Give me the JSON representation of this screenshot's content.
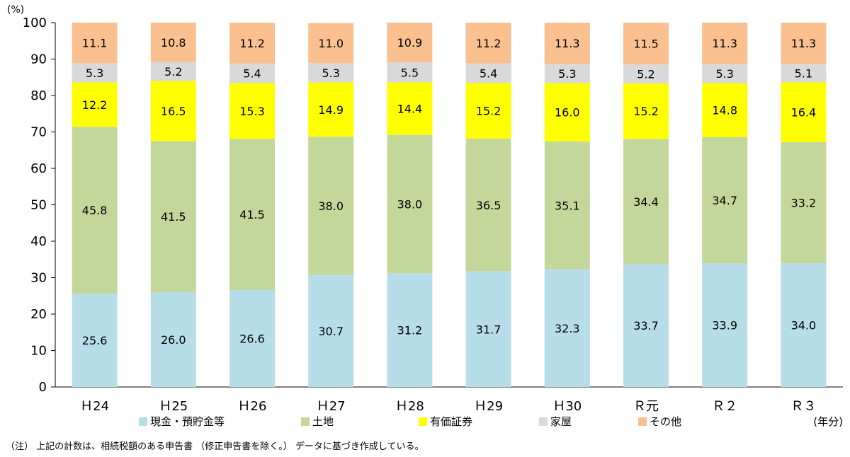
{
  "chart_data": {
    "type": "bar",
    "stacked": true,
    "percent_stacked": true,
    "title": "",
    "xlabel": "",
    "ylabel": "",
    "y_unit_label": "(%)",
    "x_unit_label": "(年分)",
    "ylim": [
      0,
      100
    ],
    "yticks": [
      0,
      10,
      20,
      30,
      40,
      50,
      60,
      70,
      80,
      90,
      100
    ],
    "grid": false,
    "legend_position": "bottom",
    "categories": [
      "H24",
      "H25",
      "H26",
      "H27",
      "H28",
      "H29",
      "H30",
      "R元",
      "R2",
      "R3"
    ],
    "category_labels": [
      "Ｈ24",
      "Ｈ25",
      "Ｈ26",
      "Ｈ27",
      "Ｈ28",
      "Ｈ29",
      "Ｈ30",
      "Ｒ元",
      "Ｒ２",
      "Ｒ３"
    ],
    "series": [
      {
        "name": "現金・預貯金等",
        "color": "#B7DDE8",
        "values": [
          25.6,
          26.0,
          26.6,
          30.7,
          31.2,
          31.7,
          32.3,
          33.7,
          33.9,
          34.0
        ]
      },
      {
        "name": "土地",
        "color": "#C4D79B",
        "values": [
          45.8,
          41.5,
          41.5,
          38.0,
          38.0,
          36.5,
          35.1,
          34.4,
          34.7,
          33.2
        ]
      },
      {
        "name": "有価証券",
        "color": "#FFFF00",
        "values": [
          12.2,
          16.5,
          15.3,
          14.9,
          14.4,
          15.2,
          16.0,
          15.2,
          14.8,
          16.4
        ]
      },
      {
        "name": "家屋",
        "color": "#D9D9D9",
        "values": [
          5.3,
          5.2,
          5.4,
          5.3,
          5.5,
          5.4,
          5.3,
          5.2,
          5.3,
          5.1
        ]
      },
      {
        "name": "その他",
        "color": "#FAC090",
        "values": [
          11.1,
          10.8,
          11.2,
          11.0,
          10.9,
          11.2,
          11.3,
          11.5,
          11.3,
          11.3
        ]
      }
    ]
  },
  "footnote": "（注） 上記の計数は、相続税額のある申告書 （修正申告書を除く。） データに基づき作成している。"
}
